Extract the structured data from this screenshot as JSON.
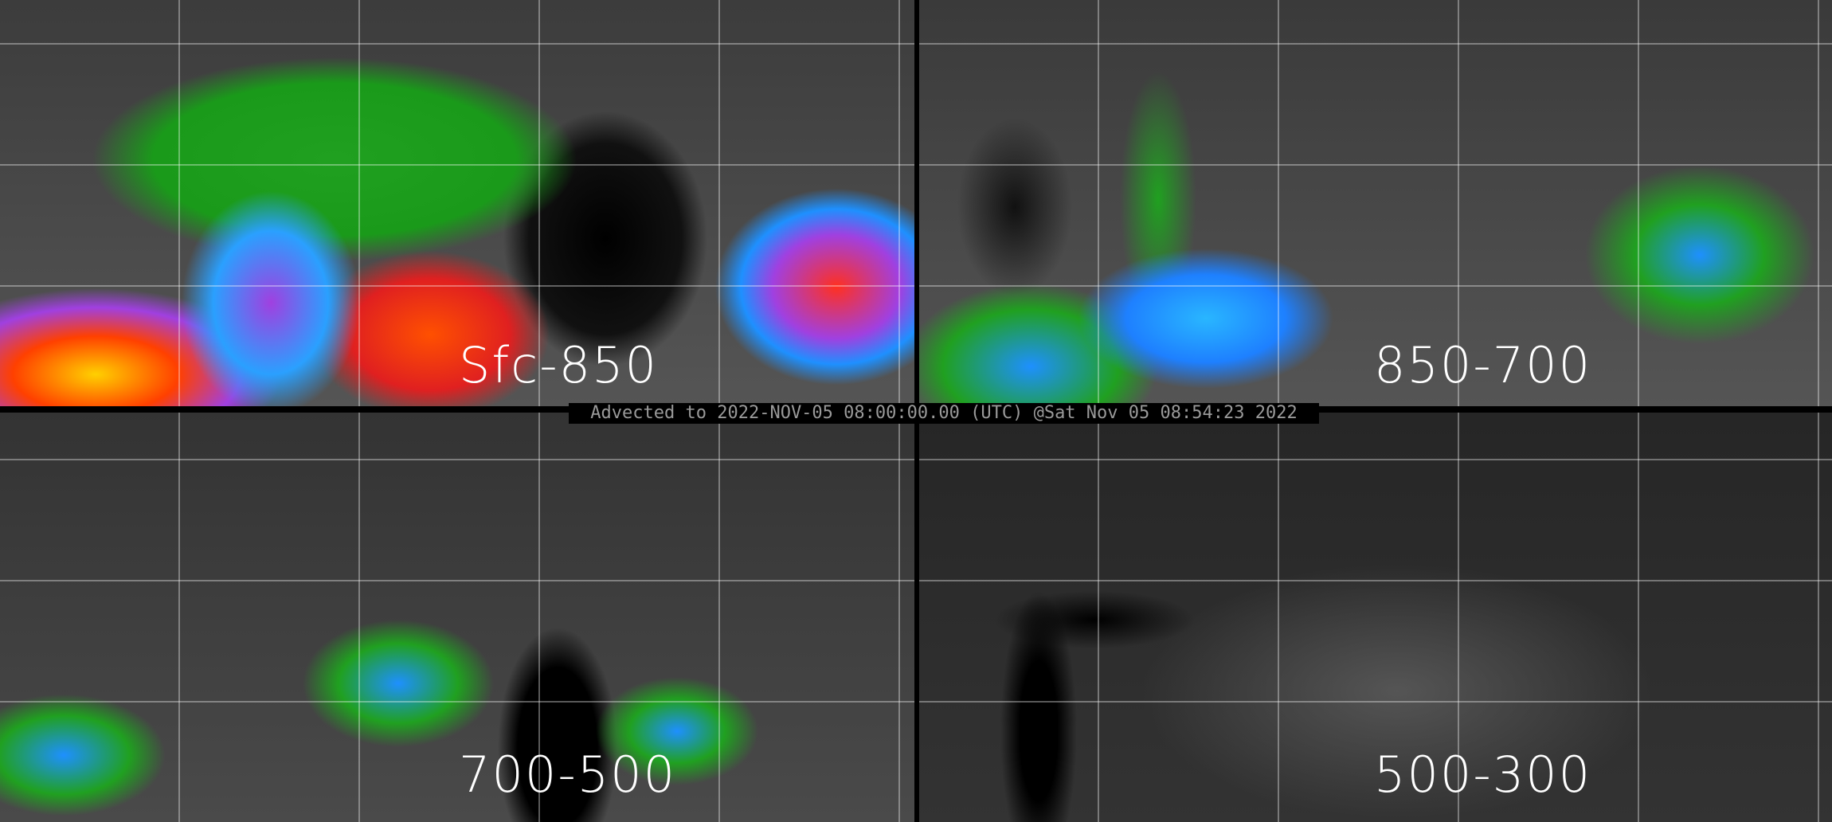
{
  "panels": [
    {
      "label": "Sfc-850"
    },
    {
      "label": "850-700"
    },
    {
      "label": "700-500"
    },
    {
      "label": "500-300"
    }
  ],
  "caption": "Advected to 2022-NOV-05 08:00:00.00 (UTC) @Sat Nov 05 08:54:23 2022",
  "colors": {
    "background": "#000000",
    "caption_text": "#9a9a9a",
    "label_text": "#ffffff"
  }
}
